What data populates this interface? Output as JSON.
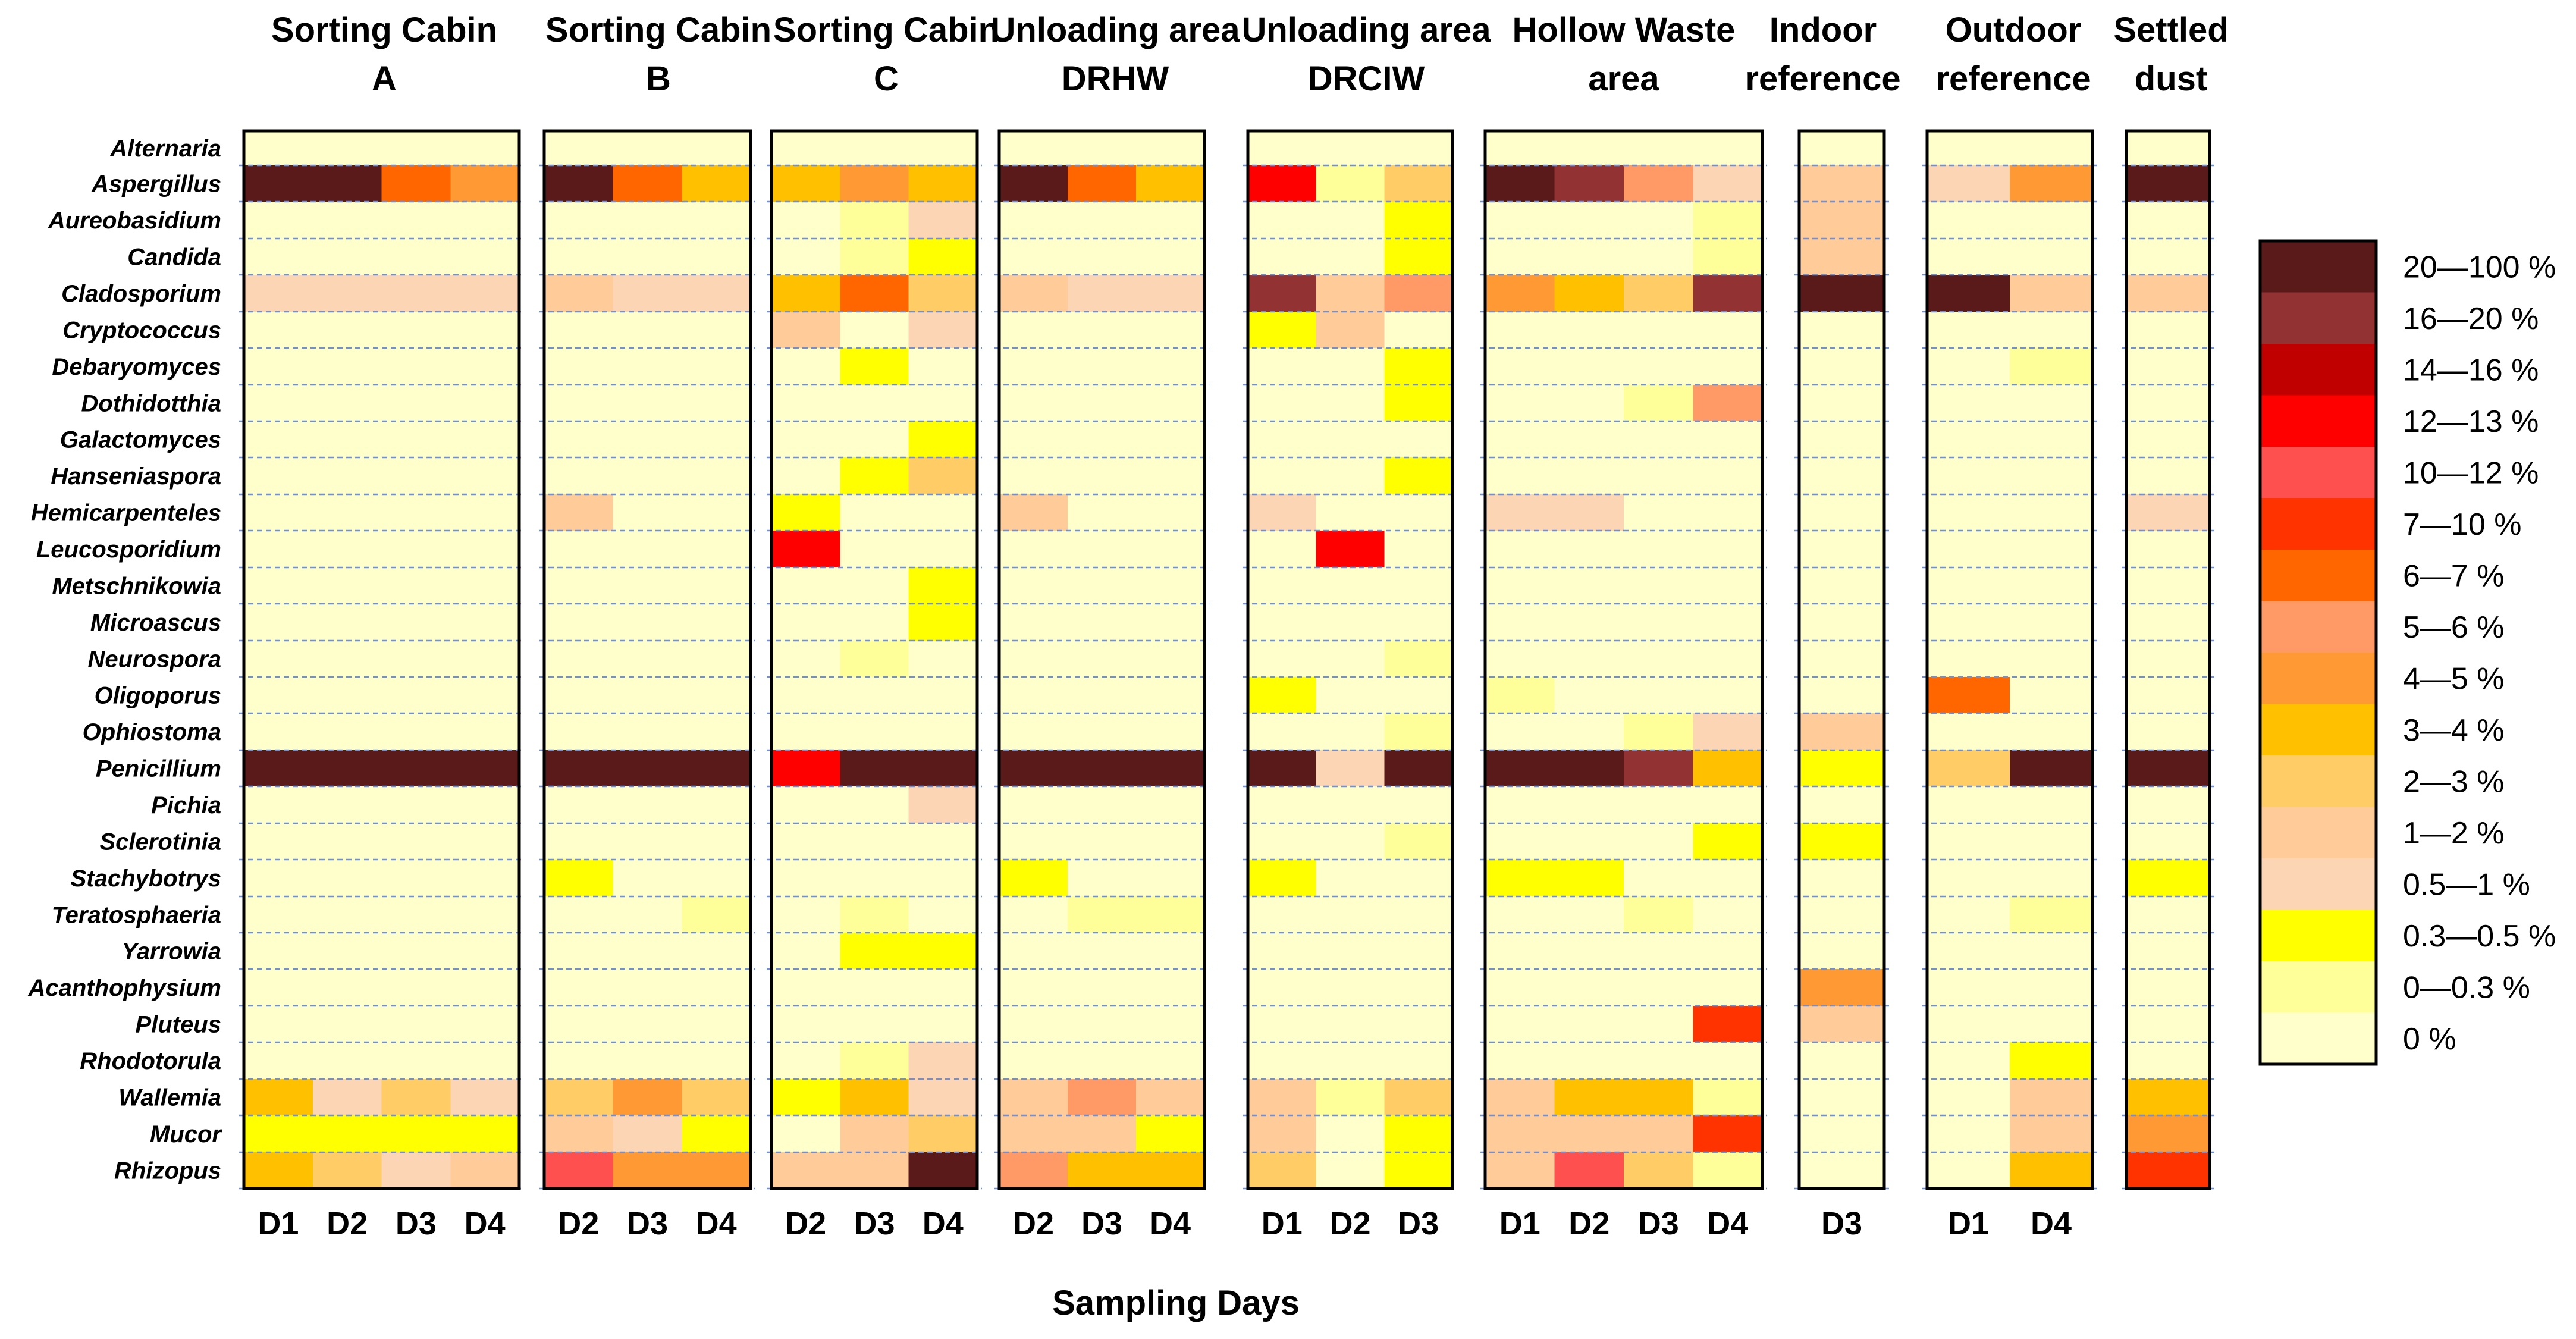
{
  "chart_data": {
    "type": "heatmap",
    "xlabel": "Sampling Days",
    "groups": [
      {
        "name": "Sorting Cabin A",
        "days": [
          "D1",
          "D2",
          "D3",
          "D4"
        ]
      },
      {
        "name": "Sorting Cabin B",
        "days": [
          "D2",
          "D3",
          "D4"
        ]
      },
      {
        "name": "Sorting Cabin C",
        "days": [
          "D2",
          "D3",
          "D4"
        ]
      },
      {
        "name": "Unloading area DRHW",
        "days": [
          "D2",
          "D3",
          "D4"
        ]
      },
      {
        "name": "Unloading area DRCIW",
        "days": [
          "D1",
          "D2",
          "D3"
        ]
      },
      {
        "name": "Hollow Waste area",
        "days": [
          "D1",
          "D2",
          "D3",
          "D4"
        ]
      },
      {
        "name": "Indoor reference",
        "days": [
          "D3"
        ]
      },
      {
        "name": "Outdoor reference",
        "days": [
          "D1",
          "D4"
        ]
      },
      {
        "name": "Settled dust",
        "days": [
          ""
        ]
      }
    ],
    "species": [
      "Alternaria",
      "Aspergillus",
      "Aureobasidium",
      "Candida",
      "Cladosporium",
      "Cryptococcus",
      "Debaryomyces",
      "Dothidotthia",
      "Galactomyces",
      "Hanseniaspora",
      "Hemicarpenteles",
      "Leucosporidium",
      "Metschnikowia",
      "Microascus",
      "Neurospora",
      "Oligoporus",
      "Ophiostoma",
      "Penicillium",
      "Pichia",
      "Sclerotinia",
      "Stachybotrys",
      "Teratosphaeria",
      "Yarrowia",
      "Acanthophysium",
      "Pluteus",
      "Rhodotorula",
      "Wallemia",
      "Mucor",
      "Rhizopus"
    ],
    "legend": [
      {
        "label": "20—100 %",
        "color": "#5a1a1a"
      },
      {
        "label": "16—20 %",
        "color": "#933232"
      },
      {
        "label": "14—16 %",
        "color": "#c00000"
      },
      {
        "label": "12—13 %",
        "color": "#ff0000"
      },
      {
        "label": "10—12 %",
        "color": "#ff5050"
      },
      {
        "label": "7—10 %",
        "color": "#ff3300"
      },
      {
        "label": "6—7 %",
        "color": "#ff6600"
      },
      {
        "label": "5—6 %",
        "color": "#ff9966"
      },
      {
        "label": "4—5 %",
        "color": "#ff9933"
      },
      {
        "label": "3—4 %",
        "color": "#ffc000"
      },
      {
        "label": "2—3 %",
        "color": "#ffcc66"
      },
      {
        "label": "1—2 %",
        "color": "#ffcc99"
      },
      {
        "label": "0.5—1 %",
        "color": "#fcd5b5"
      },
      {
        "label": "0.3—0.5 %",
        "color": "#ffff00"
      },
      {
        "label": "0—0.3 %",
        "color": "#ffff99"
      },
      {
        "label": "0 %",
        "color": "#ffffcc"
      }
    ],
    "values_legend_index": [
      [
        15,
        15,
        15,
        15,
        15,
        15,
        15,
        15,
        15,
        15,
        15,
        15,
        15,
        15,
        15,
        15,
        15,
        15,
        15,
        15,
        15,
        15,
        15,
        15
      ],
      [
        0,
        0,
        6,
        8,
        0,
        6,
        9,
        9,
        8,
        9,
        0,
        6,
        9,
        3,
        14,
        10,
        0,
        1,
        7,
        12,
        11,
        12,
        8,
        0
      ],
      [
        15,
        15,
        15,
        15,
        15,
        15,
        15,
        15,
        14,
        12,
        15,
        15,
        15,
        15,
        15,
        13,
        15,
        15,
        15,
        14,
        11,
        15,
        15,
        15
      ],
      [
        15,
        15,
        15,
        15,
        15,
        15,
        15,
        15,
        14,
        13,
        15,
        15,
        15,
        15,
        15,
        13,
        15,
        15,
        15,
        14,
        11,
        15,
        15,
        15
      ],
      [
        12,
        12,
        12,
        12,
        11,
        12,
        12,
        9,
        6,
        10,
        11,
        12,
        12,
        1,
        11,
        7,
        8,
        9,
        10,
        1,
        0,
        0,
        11,
        11
      ],
      [
        15,
        15,
        15,
        15,
        15,
        15,
        15,
        11,
        15,
        12,
        15,
        15,
        15,
        13,
        11,
        15,
        15,
        15,
        15,
        15,
        15,
        15,
        15,
        15
      ],
      [
        15,
        15,
        15,
        15,
        15,
        15,
        15,
        15,
        13,
        15,
        15,
        15,
        15,
        15,
        15,
        13,
        15,
        15,
        15,
        15,
        15,
        15,
        14,
        15
      ],
      [
        15,
        15,
        15,
        15,
        15,
        15,
        15,
        15,
        15,
        15,
        15,
        15,
        15,
        15,
        15,
        13,
        15,
        15,
        14,
        7,
        15,
        15,
        15,
        15
      ],
      [
        15,
        15,
        15,
        15,
        15,
        15,
        15,
        15,
        15,
        13,
        15,
        15,
        15,
        15,
        15,
        15,
        15,
        15,
        15,
        15,
        15,
        15,
        15,
        15
      ],
      [
        15,
        15,
        15,
        15,
        15,
        15,
        15,
        15,
        13,
        10,
        15,
        15,
        15,
        15,
        15,
        13,
        15,
        15,
        15,
        15,
        15,
        15,
        15,
        15
      ],
      [
        15,
        15,
        15,
        15,
        11,
        15,
        15,
        13,
        15,
        15,
        11,
        15,
        15,
        12,
        15,
        15,
        12,
        12,
        15,
        15,
        15,
        15,
        15,
        12
      ],
      [
        15,
        15,
        15,
        15,
        15,
        15,
        15,
        3,
        15,
        15,
        15,
        15,
        15,
        15,
        3,
        15,
        15,
        15,
        15,
        15,
        15,
        15,
        15,
        15
      ],
      [
        15,
        15,
        15,
        15,
        15,
        15,
        15,
        15,
        15,
        13,
        15,
        15,
        15,
        15,
        15,
        15,
        15,
        15,
        15,
        15,
        15,
        15,
        15,
        15
      ],
      [
        15,
        15,
        15,
        15,
        15,
        15,
        15,
        15,
        15,
        13,
        15,
        15,
        15,
        15,
        15,
        15,
        15,
        15,
        15,
        15,
        15,
        15,
        15,
        15
      ],
      [
        15,
        15,
        15,
        15,
        15,
        15,
        15,
        15,
        14,
        15,
        15,
        15,
        15,
        15,
        15,
        14,
        15,
        15,
        15,
        15,
        15,
        15,
        15,
        15
      ],
      [
        15,
        15,
        15,
        15,
        15,
        15,
        15,
        15,
        15,
        15,
        15,
        15,
        15,
        13,
        15,
        15,
        14,
        15,
        15,
        15,
        15,
        6,
        15,
        15
      ],
      [
        15,
        15,
        15,
        15,
        15,
        15,
        15,
        15,
        15,
        15,
        15,
        15,
        15,
        15,
        15,
        14,
        15,
        15,
        14,
        12,
        11,
        15,
        15,
        15
      ],
      [
        0,
        0,
        0,
        0,
        0,
        0,
        0,
        3,
        0,
        0,
        0,
        0,
        0,
        0,
        12,
        0,
        0,
        0,
        1,
        9,
        13,
        10,
        0,
        0
      ],
      [
        15,
        15,
        15,
        15,
        15,
        15,
        15,
        15,
        15,
        12,
        15,
        15,
        15,
        15,
        15,
        15,
        15,
        15,
        15,
        15,
        15,
        15,
        15,
        15
      ],
      [
        15,
        15,
        15,
        15,
        15,
        15,
        15,
        15,
        15,
        15,
        15,
        15,
        15,
        15,
        15,
        14,
        15,
        15,
        15,
        13,
        13,
        15,
        15,
        15
      ],
      [
        15,
        15,
        15,
        15,
        13,
        15,
        15,
        15,
        15,
        15,
        13,
        15,
        15,
        13,
        15,
        15,
        13,
        13,
        15,
        15,
        15,
        15,
        15,
        13
      ],
      [
        15,
        15,
        15,
        15,
        15,
        15,
        14,
        15,
        14,
        15,
        15,
        14,
        14,
        15,
        15,
        15,
        15,
        15,
        14,
        15,
        15,
        15,
        14,
        15
      ],
      [
        15,
        15,
        15,
        15,
        15,
        15,
        15,
        15,
        13,
        13,
        15,
        15,
        15,
        15,
        15,
        15,
        15,
        15,
        15,
        15,
        15,
        15,
        15,
        15
      ],
      [
        15,
        15,
        15,
        15,
        15,
        15,
        15,
        15,
        15,
        15,
        15,
        15,
        15,
        15,
        15,
        15,
        15,
        15,
        15,
        15,
        8,
        15,
        15,
        15
      ],
      [
        15,
        15,
        15,
        15,
        15,
        15,
        15,
        15,
        15,
        15,
        15,
        15,
        15,
        15,
        15,
        15,
        15,
        15,
        15,
        5,
        11,
        15,
        15,
        15
      ],
      [
        15,
        15,
        15,
        15,
        15,
        15,
        15,
        15,
        14,
        12,
        15,
        15,
        15,
        15,
        15,
        15,
        15,
        15,
        15,
        15,
        15,
        15,
        13,
        15
      ],
      [
        9,
        12,
        10,
        12,
        10,
        8,
        10,
        13,
        9,
        12,
        11,
        7,
        11,
        11,
        14,
        10,
        11,
        9,
        9,
        14,
        15,
        15,
        11,
        9
      ],
      [
        13,
        13,
        13,
        13,
        11,
        12,
        13,
        15,
        11,
        10,
        11,
        11,
        13,
        11,
        15,
        13,
        11,
        11,
        11,
        5,
        15,
        15,
        11,
        8
      ],
      [
        9,
        10,
        12,
        11,
        4,
        8,
        8,
        11,
        11,
        0,
        7,
        9,
        9,
        10,
        15,
        13,
        11,
        4,
        10,
        14,
        15,
        15,
        9,
        5
      ]
    ]
  }
}
